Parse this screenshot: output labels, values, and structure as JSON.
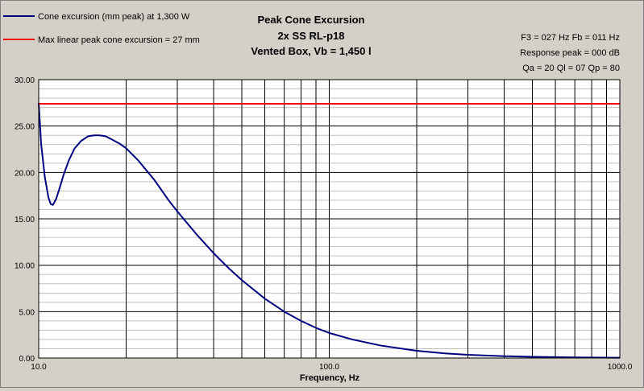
{
  "chart_data": {
    "type": "line",
    "title_lines": [
      "Peak Cone Excursion",
      "2x SS RL-p18",
      "Vented Box, Vb = 1,450 l"
    ],
    "xlabel": "Frequency, Hz",
    "ylabel": "",
    "x_scale": "log",
    "xlim": [
      10,
      1000
    ],
    "ylim": [
      0,
      30
    ],
    "x_tick_labels": [
      "10.0",
      "100.0",
      "1000.0"
    ],
    "x_tick_values": [
      10,
      100,
      1000
    ],
    "y_tick_labels": [
      "0.00",
      "5.00",
      "10.00",
      "15.00",
      "20.00",
      "25.00",
      "30.00"
    ],
    "y_tick_values": [
      0,
      5,
      10,
      15,
      20,
      25,
      30
    ],
    "grid": true,
    "legend_position": "top-left",
    "info_lines": [
      "F3 = 027 Hz  Fb = 011 Hz",
      "Response peak = 000 dB",
      "Qa = 20  Ql = 07  Qp = 80"
    ],
    "series": [
      {
        "name": "Cone excursion (mm peak) at 1,300 W",
        "color": "#000080",
        "x": [
          10,
          10.2,
          10.5,
          10.8,
          11.0,
          11.2,
          11.5,
          11.8,
          12.2,
          12.7,
          13.3,
          14.0,
          14.8,
          15.5,
          16.2,
          17.0,
          18.0,
          19.0,
          20.0,
          22.0,
          25.0,
          28.0,
          30.0,
          35.0,
          40.0,
          45.0,
          50.0,
          60.0,
          70.0,
          80.0,
          90.0,
          100.0,
          120.0,
          150.0,
          200.0,
          250.0,
          300.0,
          400.0,
          500.0,
          700.0,
          1000.0
        ],
        "y": [
          27.5,
          23.0,
          19.5,
          17.3,
          16.6,
          16.5,
          17.2,
          18.3,
          19.8,
          21.3,
          22.6,
          23.4,
          23.9,
          24.0,
          24.0,
          23.9,
          23.5,
          23.1,
          22.6,
          21.3,
          19.2,
          17.0,
          15.8,
          13.3,
          11.3,
          9.7,
          8.4,
          6.4,
          5.0,
          4.0,
          3.25,
          2.7,
          2.0,
          1.35,
          0.78,
          0.5,
          0.35,
          0.2,
          0.13,
          0.07,
          0.03
        ]
      },
      {
        "name": "Max linear peak cone excursion = 27 mm",
        "color": "#ff0000",
        "x": [
          10,
          1000
        ],
        "y": [
          27.4,
          27.4
        ]
      }
    ]
  },
  "colors": {
    "background": "#d4d0c8",
    "plot_background": "#ffffff",
    "grid_major": "#000000",
    "grid_minor": "#c0c0c0"
  }
}
